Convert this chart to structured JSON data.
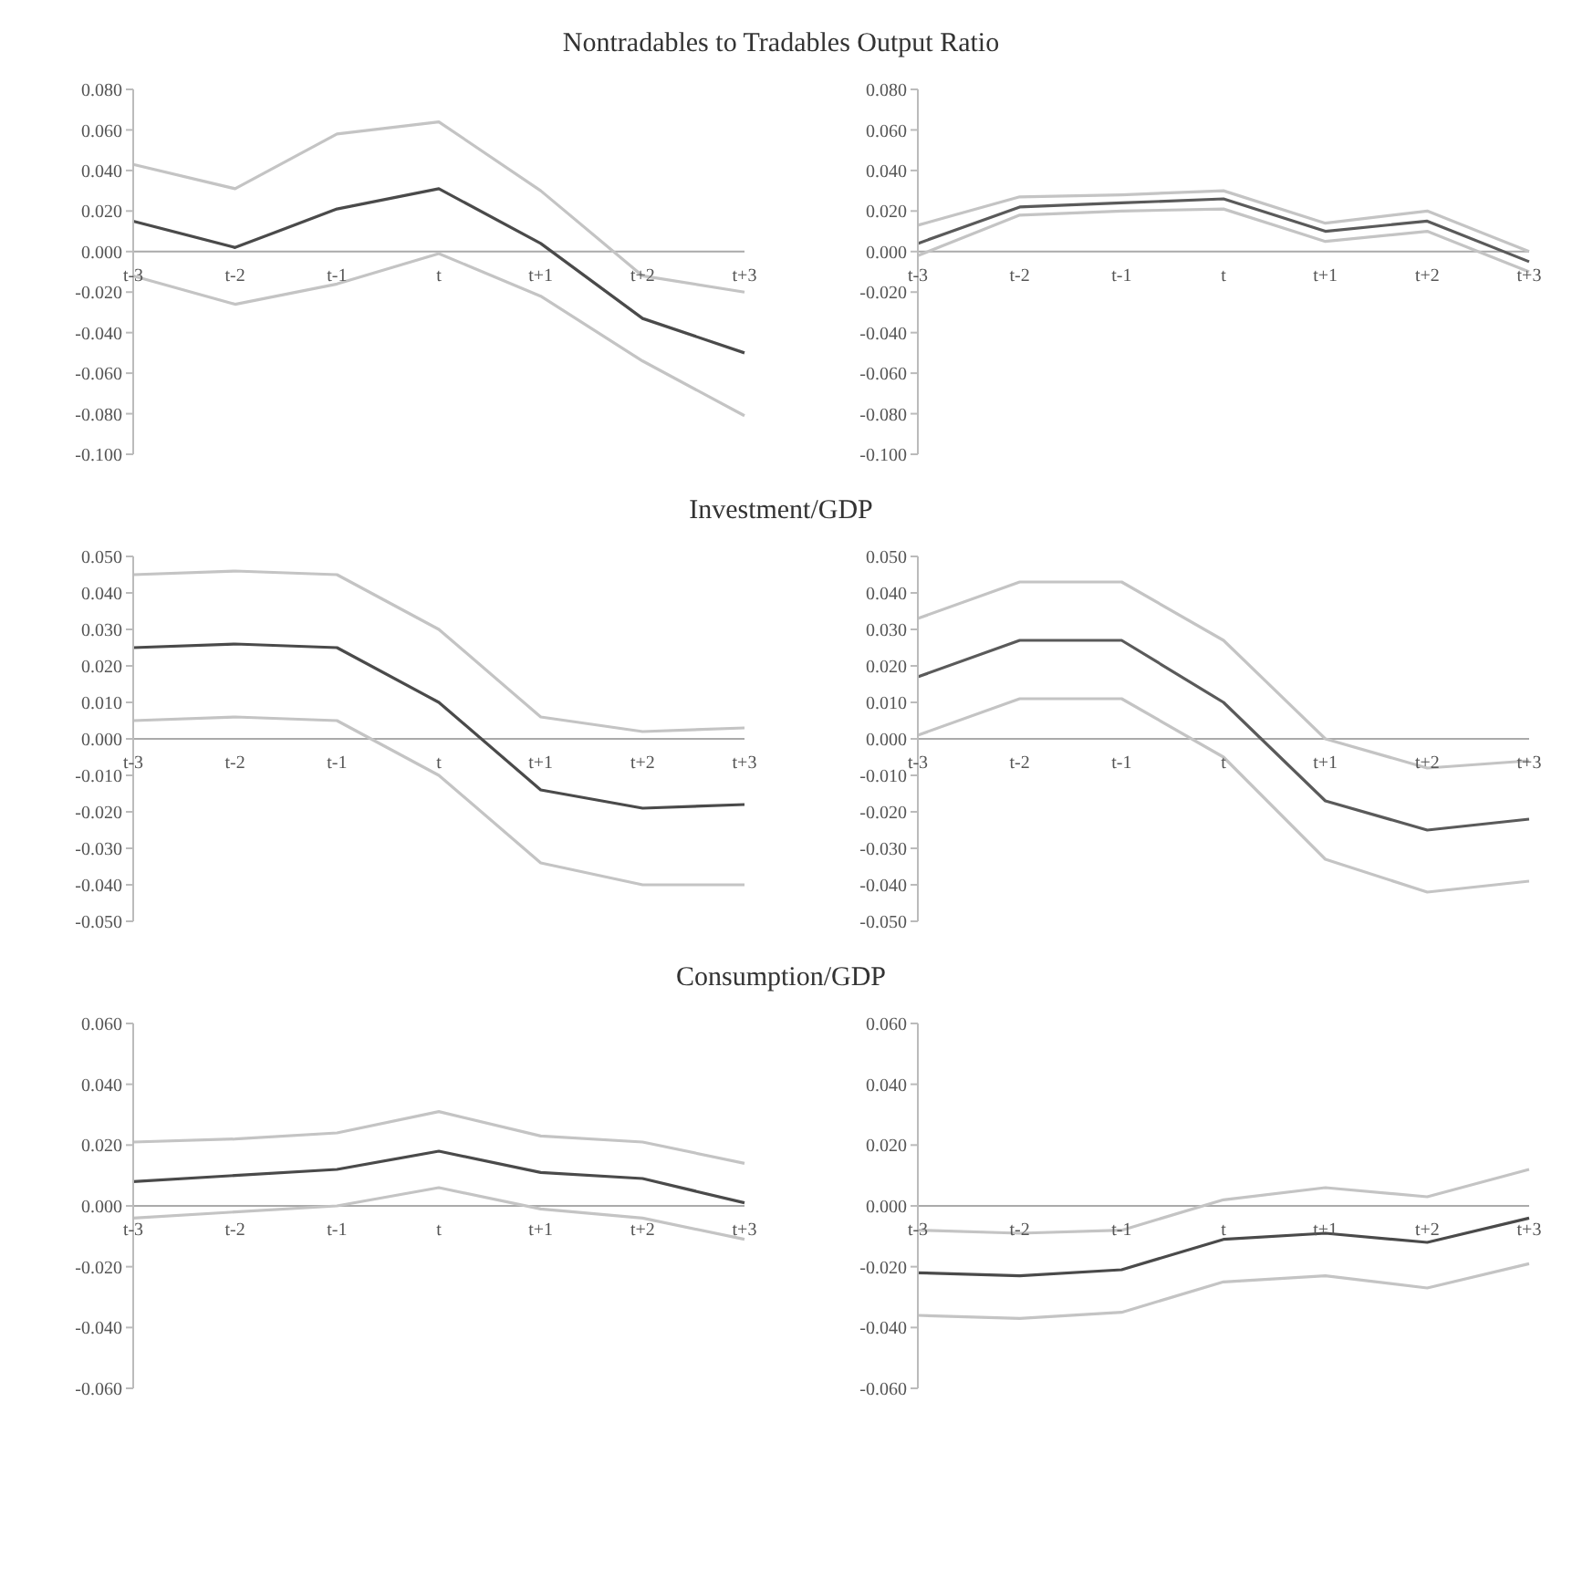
{
  "chart_data": [
    {
      "type": "line",
      "title": "Nontradables to Tradables Output Ratio",
      "categories": [
        "t-3",
        "t-2",
        "t-1",
        "t",
        "t+1",
        "t+2",
        "t+3"
      ],
      "ylim": [
        -0.1,
        0.08
      ],
      "yticks": [
        {
          "value": -0.1,
          "label": "-0.100"
        },
        {
          "value": -0.08,
          "label": "-0.080"
        },
        {
          "value": -0.06,
          "label": "-0.060"
        },
        {
          "value": -0.04,
          "label": "-0.040"
        },
        {
          "value": -0.02,
          "label": "-0.020"
        },
        {
          "value": 0,
          "label": "0.000"
        },
        {
          "value": 0.02,
          "label": "0.020"
        },
        {
          "value": 0.04,
          "label": "0.040"
        },
        {
          "value": 0.06,
          "label": "0.060"
        },
        {
          "value": 0.08,
          "label": "0.080"
        }
      ],
      "grid": false,
      "legend": false,
      "marker": "none",
      "series": [
        {
          "color": "#c4c4c4",
          "values": [
            0.043,
            0.031,
            0.058,
            0.064,
            0.03,
            -0.012,
            -0.02
          ]
        },
        {
          "color": "#c4c4c4",
          "values": [
            -0.012,
            -0.026,
            -0.016,
            -0.001,
            -0.022,
            -0.054,
            -0.081
          ]
        },
        {
          "color": "#4a4a4a",
          "values": [
            0.015,
            0.002,
            0.021,
            0.031,
            0.004,
            -0.033,
            -0.05
          ]
        }
      ]
    },
    {
      "type": "line",
      "categories": [
        "t-3",
        "t-2",
        "t-1",
        "t",
        "t+1",
        "t+2",
        "t+3"
      ],
      "ylim": [
        -0.1,
        0.08
      ],
      "yticks": [
        {
          "value": -0.1,
          "label": "-0.100"
        },
        {
          "value": -0.08,
          "label": "-0.080"
        },
        {
          "value": -0.06,
          "label": "-0.060"
        },
        {
          "value": -0.04,
          "label": "-0.040"
        },
        {
          "value": -0.02,
          "label": "-0.020"
        },
        {
          "value": 0,
          "label": "0.000"
        },
        {
          "value": 0.02,
          "label": "0.020"
        },
        {
          "value": 0.04,
          "label": "0.040"
        },
        {
          "value": 0.06,
          "label": "0.060"
        },
        {
          "value": 0.08,
          "label": "0.080"
        }
      ],
      "grid": false,
      "legend": false,
      "marker": "none",
      "series": [
        {
          "color": "#c4c4c4",
          "values": [
            0.013,
            0.027,
            0.028,
            0.03,
            0.014,
            0.02,
            0.0
          ]
        },
        {
          "color": "#c4c4c4",
          "values": [
            -0.002,
            0.018,
            0.02,
            0.021,
            0.005,
            0.01,
            -0.01
          ]
        },
        {
          "color": "#5a5a5a",
          "values": [
            0.004,
            0.022,
            0.024,
            0.026,
            0.01,
            0.015,
            -0.005
          ]
        }
      ]
    },
    {
      "type": "line",
      "title": "Investment/GDP",
      "categories": [
        "t-3",
        "t-2",
        "t-1",
        "t",
        "t+1",
        "t+2",
        "t+3"
      ],
      "ylim": [
        -0.05,
        0.05
      ],
      "yticks": [
        {
          "value": -0.05,
          "label": "-0.050"
        },
        {
          "value": -0.04,
          "label": "-0.040"
        },
        {
          "value": -0.03,
          "label": "-0.030"
        },
        {
          "value": -0.02,
          "label": "-0.020"
        },
        {
          "value": -0.01,
          "label": "-0.010"
        },
        {
          "value": 0,
          "label": "0.000"
        },
        {
          "value": 0.01,
          "label": "0.010"
        },
        {
          "value": 0.02,
          "label": "0.020"
        },
        {
          "value": 0.03,
          "label": "0.030"
        },
        {
          "value": 0.04,
          "label": "0.040"
        },
        {
          "value": 0.05,
          "label": "0.050"
        }
      ],
      "grid": false,
      "legend": false,
      "marker": "none",
      "series": [
        {
          "color": "#c4c4c4",
          "values": [
            0.045,
            0.046,
            0.045,
            0.03,
            0.006,
            0.002,
            0.003
          ]
        },
        {
          "color": "#c4c4c4",
          "values": [
            0.005,
            0.006,
            0.005,
            -0.01,
            -0.034,
            -0.04,
            -0.04
          ]
        },
        {
          "color": "#4a4a4a",
          "values": [
            0.025,
            0.026,
            0.025,
            0.01,
            -0.014,
            -0.019,
            -0.018
          ]
        }
      ]
    },
    {
      "type": "line",
      "categories": [
        "t-3",
        "t-2",
        "t-1",
        "t",
        "t+1",
        "t+2",
        "t+3"
      ],
      "ylim": [
        -0.05,
        0.05
      ],
      "yticks": [
        {
          "value": -0.05,
          "label": "-0.050"
        },
        {
          "value": -0.04,
          "label": "-0.040"
        },
        {
          "value": -0.03,
          "label": "-0.030"
        },
        {
          "value": -0.02,
          "label": "-0.020"
        },
        {
          "value": -0.01,
          "label": "-0.010"
        },
        {
          "value": 0,
          "label": "0.000"
        },
        {
          "value": 0.01,
          "label": "0.010"
        },
        {
          "value": 0.02,
          "label": "0.020"
        },
        {
          "value": 0.03,
          "label": "0.030"
        },
        {
          "value": 0.04,
          "label": "0.040"
        },
        {
          "value": 0.05,
          "label": "0.050"
        }
      ],
      "grid": false,
      "legend": false,
      "marker": "none",
      "series": [
        {
          "color": "#c4c4c4",
          "values": [
            0.033,
            0.043,
            0.043,
            0.027,
            0.0,
            -0.008,
            -0.006
          ]
        },
        {
          "color": "#c4c4c4",
          "values": [
            0.001,
            0.011,
            0.011,
            -0.005,
            -0.033,
            -0.042,
            -0.039
          ]
        },
        {
          "color": "#5a5a5a",
          "values": [
            0.017,
            0.027,
            0.027,
            0.01,
            -0.017,
            -0.025,
            -0.022
          ]
        }
      ]
    },
    {
      "type": "line",
      "title": "Consumption/GDP",
      "categories": [
        "t-3",
        "t-2",
        "t-1",
        "t",
        "t+1",
        "t+2",
        "t+3"
      ],
      "ylim": [
        -0.06,
        0.06
      ],
      "yticks": [
        {
          "value": -0.06,
          "label": "-0.060"
        },
        {
          "value": -0.04,
          "label": "-0.040"
        },
        {
          "value": -0.02,
          "label": "-0.020"
        },
        {
          "value": 0,
          "label": "0.000"
        },
        {
          "value": 0.02,
          "label": "0.020"
        },
        {
          "value": 0.04,
          "label": "0.040"
        },
        {
          "value": 0.06,
          "label": "0.060"
        }
      ],
      "grid": false,
      "legend": false,
      "marker": "none",
      "series": [
        {
          "color": "#c4c4c4",
          "values": [
            0.021,
            0.022,
            0.024,
            0.031,
            0.023,
            0.021,
            0.014
          ]
        },
        {
          "color": "#c4c4c4",
          "values": [
            -0.004,
            -0.002,
            0.0,
            0.006,
            -0.001,
            -0.004,
            -0.011
          ]
        },
        {
          "color": "#4a4a4a",
          "values": [
            0.008,
            0.01,
            0.012,
            0.018,
            0.011,
            0.009,
            0.001
          ]
        }
      ]
    },
    {
      "type": "line",
      "categories": [
        "t-3",
        "t-2",
        "t-1",
        "t",
        "t+1",
        "t+2",
        "t+3"
      ],
      "ylim": [
        -0.06,
        0.06
      ],
      "yticks": [
        {
          "value": -0.06,
          "label": "-0.060"
        },
        {
          "value": -0.04,
          "label": "-0.040"
        },
        {
          "value": -0.02,
          "label": "-0.020"
        },
        {
          "value": 0,
          "label": "0.000"
        },
        {
          "value": 0.02,
          "label": "0.020"
        },
        {
          "value": 0.04,
          "label": "0.040"
        },
        {
          "value": 0.06,
          "label": "0.060"
        }
      ],
      "grid": false,
      "legend": false,
      "marker": "none",
      "series": [
        {
          "color": "#c4c4c4",
          "values": [
            -0.008,
            -0.009,
            -0.008,
            0.002,
            0.006,
            0.003,
            0.012
          ]
        },
        {
          "color": "#c4c4c4",
          "values": [
            -0.036,
            -0.037,
            -0.035,
            -0.025,
            -0.023,
            -0.027,
            -0.019
          ]
        },
        {
          "color": "#4a4a4a",
          "values": [
            -0.022,
            -0.023,
            -0.021,
            -0.011,
            -0.009,
            -0.012,
            -0.004
          ]
        }
      ]
    }
  ]
}
